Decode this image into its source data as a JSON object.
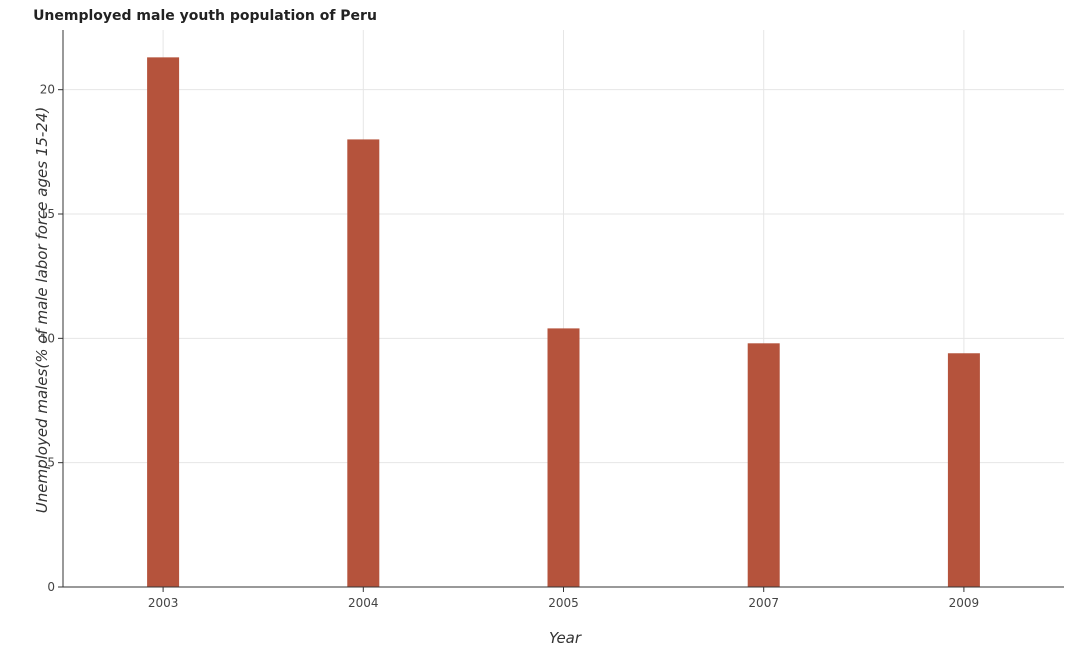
{
  "title": "Unemployed male youth population of Peru",
  "chart_data": {
    "type": "bar",
    "title": "Unemployed male youth population of Peru",
    "xlabel": "Year",
    "ylabel": "Unemployed males(% of male labor force ages 15-24)",
    "categories": [
      "2003",
      "2004",
      "2005",
      "2007",
      "2009"
    ],
    "values": [
      21.3,
      18.0,
      10.4,
      9.8,
      9.4
    ],
    "ylim": [
      0,
      22.4
    ],
    "yticks": [
      0,
      5,
      10,
      15,
      20
    ],
    "grid": true,
    "bar_color": "#b5533c"
  }
}
